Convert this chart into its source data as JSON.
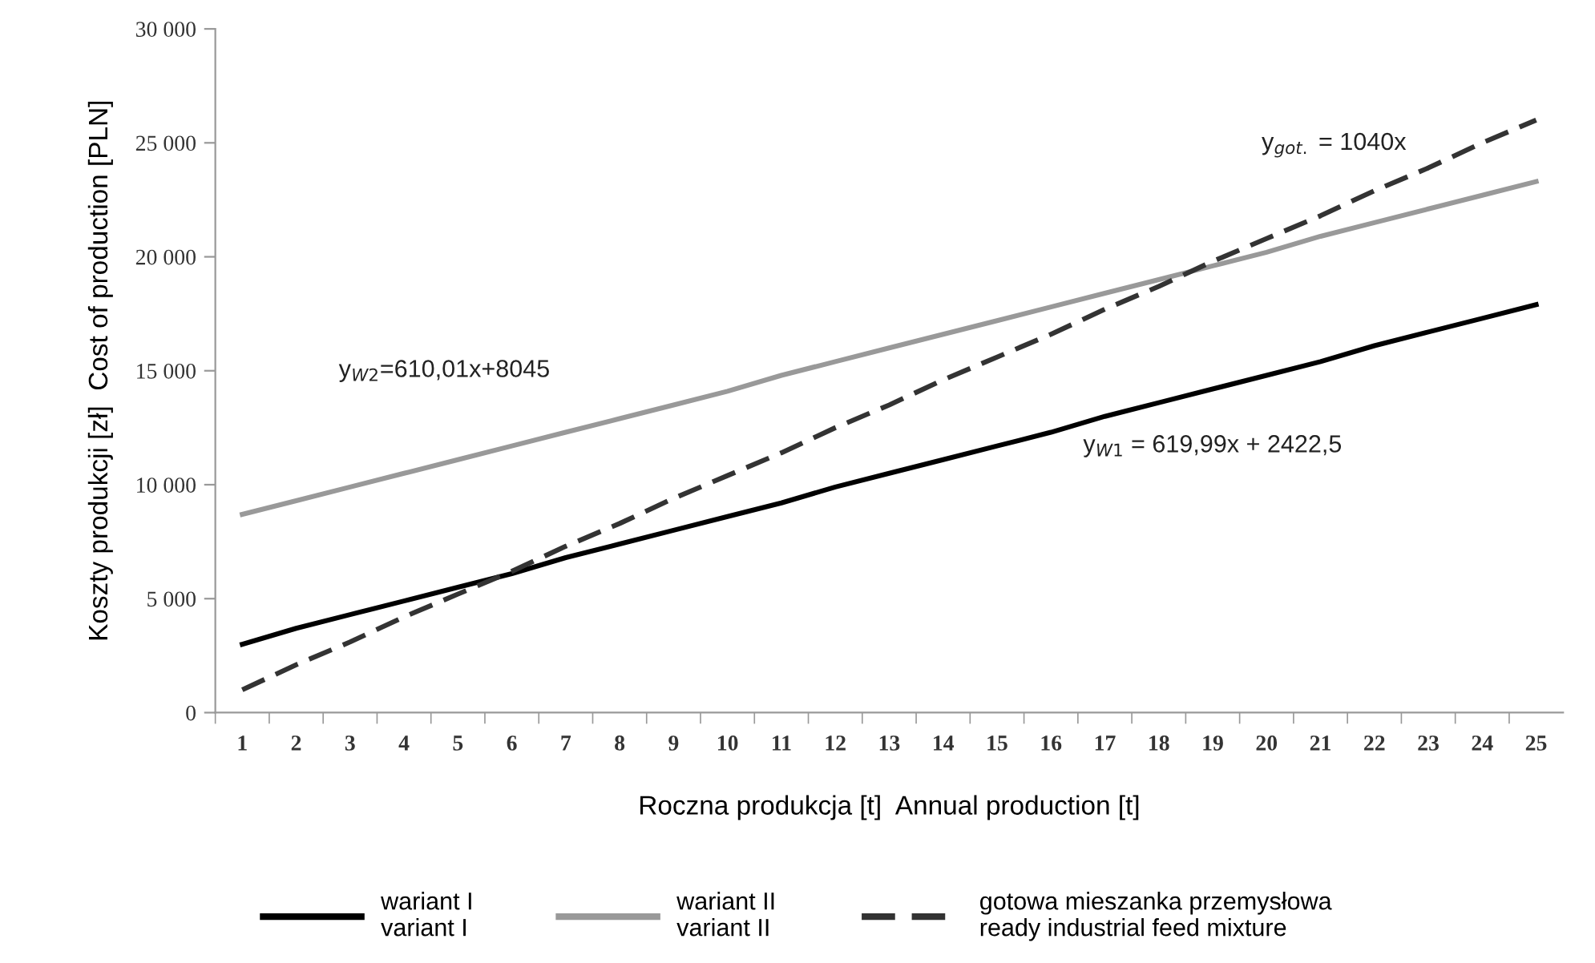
{
  "chart_data": {
    "type": "line",
    "xlabel": "Roczna produkcja [t]  Annual production [t]",
    "ylabel": "Koszty produkcji [zł]  Cost of production [PLN]",
    "categories": [
      "1",
      "2",
      "3",
      "4",
      "5",
      "6",
      "7",
      "8",
      "9",
      "10",
      "11",
      "12",
      "13",
      "14",
      "15",
      "16",
      "17",
      "18",
      "19",
      "20",
      "21",
      "22",
      "23",
      "24",
      "25"
    ],
    "series": [
      {
        "name": "wariant I\nvariant I",
        "color": "#000000",
        "line_style": "solid",
        "values": [
          3000,
          3700,
          4300,
          4900,
          5500,
          6100,
          6800,
          7400,
          8000,
          8600,
          9200,
          9900,
          10500,
          11100,
          11700,
          12300,
          13000,
          13600,
          14200,
          14800,
          15400,
          16100,
          16700,
          17300,
          17900
        ]
      },
      {
        "name": "wariant II\nvariant II",
        "color": "#999999",
        "line_style": "solid",
        "values": [
          8700,
          9300,
          9900,
          10500,
          11100,
          11700,
          12300,
          12900,
          13500,
          14100,
          14800,
          15400,
          16000,
          16600,
          17200,
          17800,
          18400,
          19000,
          19600,
          20200,
          20900,
          21500,
          22100,
          22700,
          23300
        ]
      },
      {
        "name": "gotowa mieszanka przemysłowa\nready industrial feed mixture",
        "color": "#333333",
        "line_style": "dashed",
        "values": [
          1000,
          2100,
          3100,
          4200,
          5200,
          6200,
          7300,
          8300,
          9400,
          10400,
          11400,
          12500,
          13500,
          14600,
          15600,
          16600,
          17700,
          18700,
          19800,
          20800,
          21800,
          22900,
          23900,
          25000,
          26000
        ]
      }
    ],
    "ylim": [
      0,
      30000
    ],
    "yticks": [
      0,
      {
        "value": 5000,
        "label": "5 000"
      },
      {
        "value": 10000,
        "label": "10 000"
      },
      {
        "value": 15000,
        "label": "15 000"
      },
      {
        "value": 20000,
        "label": "20 000"
      },
      {
        "value": 25000,
        "label": "25 000"
      },
      {
        "value": 30000,
        "label": "30 000"
      }
    ],
    "annotations": [
      "y$_{W2}$=610,01x+8045",
      "y$_{W1}$ = 619,99x + 2422,5",
      "y$_{got.}$ = 1040x"
    ],
    "grid": false,
    "legend": "bottom",
    "marker": "none"
  }
}
